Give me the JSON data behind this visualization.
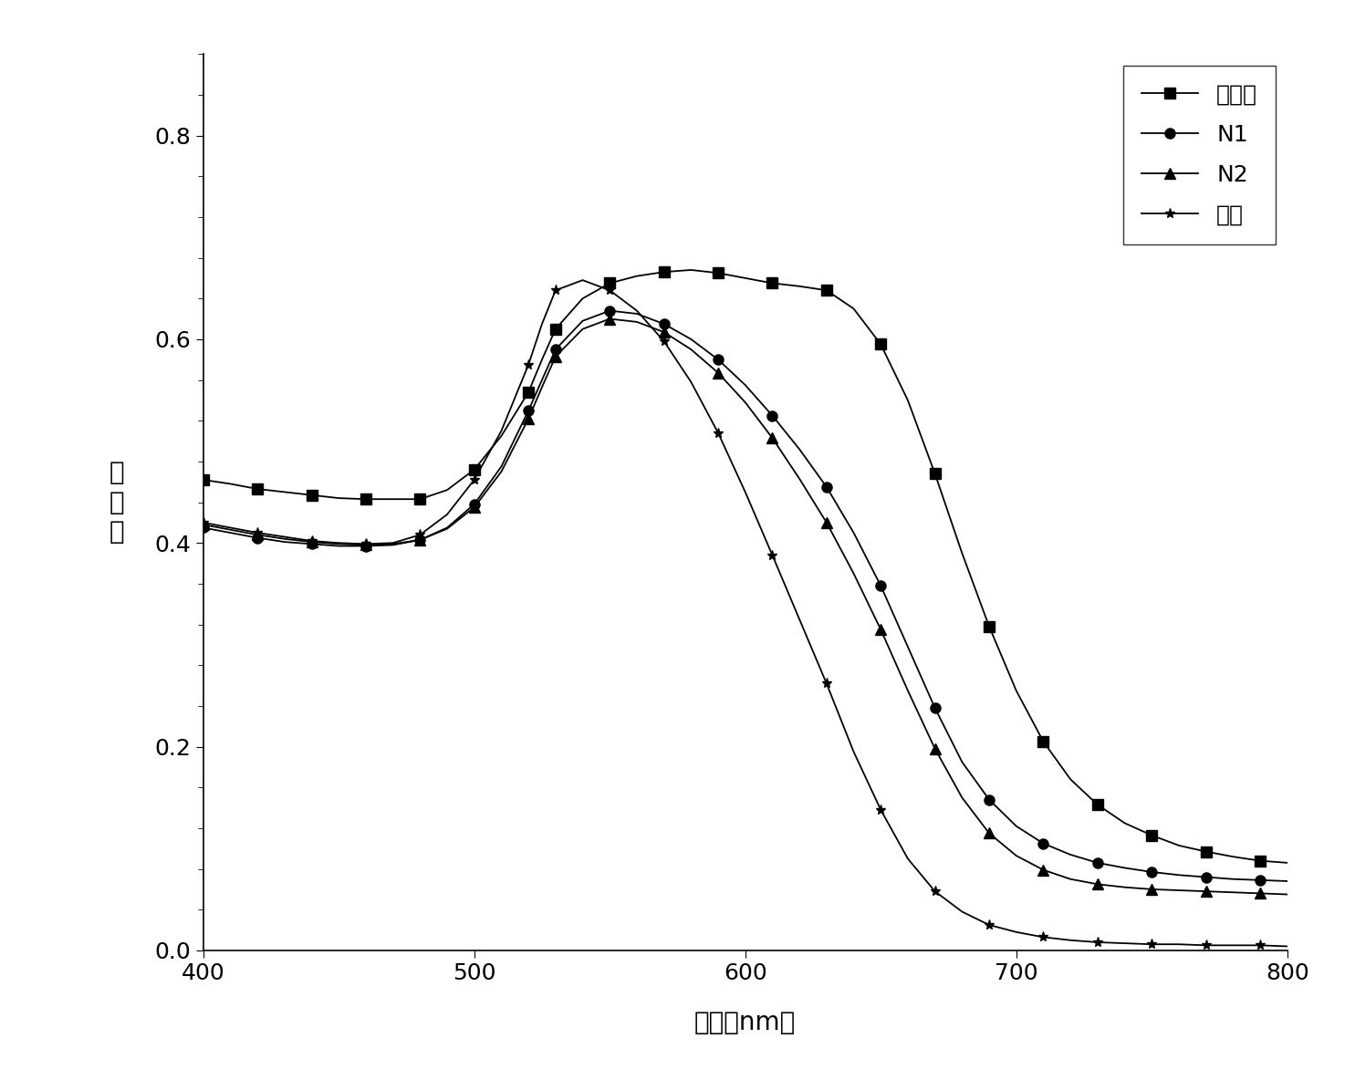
{
  "xlabel": "波长（nm）",
  "ylabel": "吸\n光\n度",
  "xlim": [
    400,
    800
  ],
  "ylim": [
    0.0,
    0.88
  ],
  "yticks": [
    0.0,
    0.2,
    0.4,
    0.6,
    0.8
  ],
  "xticks": [
    400,
    500,
    600,
    700,
    800
  ],
  "legend_labels": [
    "可卡因",
    "N1",
    "N2",
    "空白"
  ],
  "series": {
    "cocaine": {
      "x": [
        400,
        410,
        420,
        430,
        440,
        450,
        460,
        470,
        480,
        490,
        500,
        510,
        520,
        525,
        530,
        540,
        550,
        560,
        570,
        580,
        590,
        600,
        610,
        620,
        630,
        640,
        650,
        660,
        670,
        680,
        690,
        700,
        710,
        720,
        730,
        740,
        750,
        760,
        770,
        780,
        790,
        800
      ],
      "y": [
        0.462,
        0.458,
        0.453,
        0.45,
        0.447,
        0.444,
        0.443,
        0.443,
        0.443,
        0.452,
        0.472,
        0.505,
        0.548,
        0.58,
        0.61,
        0.64,
        0.655,
        0.662,
        0.666,
        0.668,
        0.665,
        0.66,
        0.655,
        0.652,
        0.648,
        0.63,
        0.595,
        0.54,
        0.468,
        0.39,
        0.318,
        0.255,
        0.205,
        0.168,
        0.143,
        0.125,
        0.113,
        0.103,
        0.097,
        0.092,
        0.088,
        0.086
      ]
    },
    "N1": {
      "x": [
        400,
        410,
        420,
        430,
        440,
        450,
        460,
        470,
        480,
        490,
        500,
        510,
        520,
        525,
        530,
        540,
        550,
        560,
        570,
        580,
        590,
        600,
        610,
        620,
        630,
        640,
        650,
        660,
        670,
        680,
        690,
        700,
        710,
        720,
        730,
        740,
        750,
        760,
        770,
        780,
        790,
        800
      ],
      "y": [
        0.415,
        0.41,
        0.405,
        0.401,
        0.399,
        0.397,
        0.397,
        0.398,
        0.403,
        0.415,
        0.438,
        0.475,
        0.53,
        0.56,
        0.59,
        0.618,
        0.628,
        0.625,
        0.615,
        0.6,
        0.58,
        0.555,
        0.525,
        0.492,
        0.455,
        0.41,
        0.358,
        0.298,
        0.238,
        0.185,
        0.148,
        0.122,
        0.105,
        0.094,
        0.086,
        0.081,
        0.077,
        0.074,
        0.072,
        0.07,
        0.069,
        0.068
      ]
    },
    "N2": {
      "x": [
        400,
        410,
        420,
        430,
        440,
        450,
        460,
        470,
        480,
        490,
        500,
        510,
        520,
        525,
        530,
        540,
        550,
        560,
        570,
        580,
        590,
        600,
        610,
        620,
        630,
        640,
        650,
        660,
        670,
        680,
        690,
        700,
        710,
        720,
        730,
        740,
        750,
        760,
        770,
        780,
        790,
        800
      ],
      "y": [
        0.418,
        0.413,
        0.408,
        0.404,
        0.401,
        0.399,
        0.398,
        0.399,
        0.403,
        0.414,
        0.435,
        0.47,
        0.522,
        0.553,
        0.583,
        0.61,
        0.62,
        0.617,
        0.607,
        0.59,
        0.567,
        0.538,
        0.503,
        0.463,
        0.42,
        0.37,
        0.315,
        0.255,
        0.198,
        0.15,
        0.115,
        0.093,
        0.079,
        0.07,
        0.065,
        0.062,
        0.06,
        0.059,
        0.058,
        0.057,
        0.056,
        0.055
      ]
    },
    "blank": {
      "x": [
        400,
        410,
        420,
        430,
        440,
        450,
        460,
        470,
        480,
        490,
        500,
        510,
        520,
        525,
        530,
        540,
        550,
        560,
        570,
        580,
        590,
        600,
        610,
        620,
        630,
        640,
        650,
        660,
        670,
        680,
        690,
        700,
        710,
        720,
        730,
        740,
        750,
        760,
        770,
        780,
        790,
        800
      ],
      "y": [
        0.42,
        0.415,
        0.41,
        0.406,
        0.402,
        0.4,
        0.399,
        0.4,
        0.408,
        0.428,
        0.462,
        0.51,
        0.575,
        0.615,
        0.648,
        0.658,
        0.648,
        0.628,
        0.598,
        0.558,
        0.508,
        0.45,
        0.388,
        0.325,
        0.262,
        0.195,
        0.138,
        0.09,
        0.058,
        0.038,
        0.025,
        0.018,
        0.013,
        0.01,
        0.008,
        0.007,
        0.006,
        0.006,
        0.005,
        0.005,
        0.005,
        0.004
      ]
    }
  },
  "background_color": "#ffffff",
  "marker_size": 8,
  "linewidth": 1.3,
  "markevery": 2,
  "figsize": [
    14.85,
    11.84
  ],
  "dpi": 100
}
